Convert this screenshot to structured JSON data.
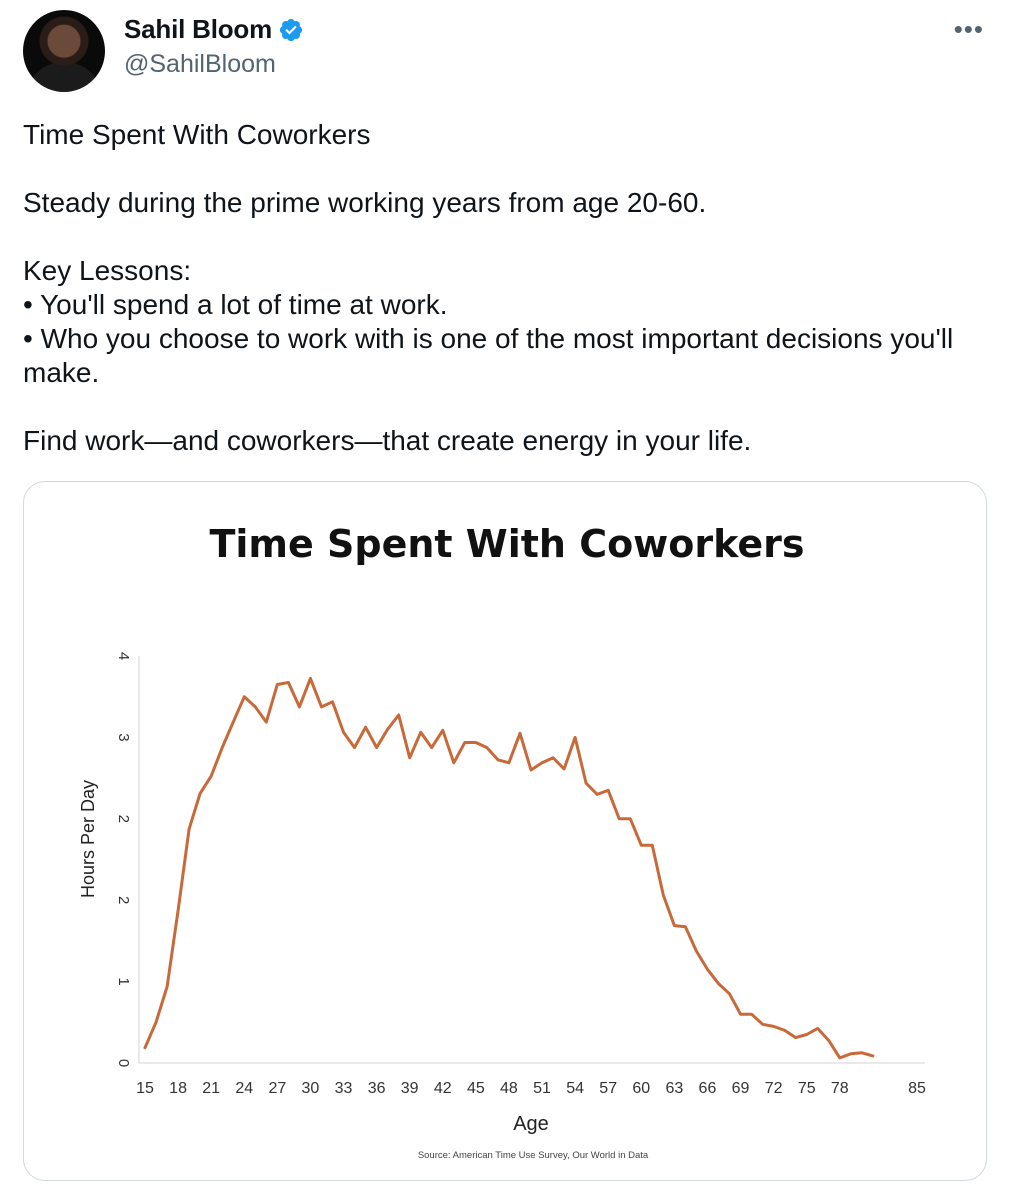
{
  "author": {
    "name": "Sahil Bloom",
    "handle": "@SahilBloom",
    "verified_icon": "verified-badge-icon",
    "more_icon": "more-options-icon",
    "more_label": "•••"
  },
  "tweet": {
    "title": "Time Spent With Coworkers",
    "line1": "Steady during the prime working years from age 20-60.",
    "lessons_header": "Key Lessons:",
    "lesson1": "• You'll spend a lot of time at work.",
    "lesson2": "• Who you choose to work with is one of the most important decisions you'll make.",
    "closing": "Find work—and coworkers—that create energy in your life."
  },
  "chart_data": {
    "type": "line",
    "title": "Time Spent With Coworkers",
    "xlabel": "Age",
    "ylabel": "Hours Per Day",
    "source": "Source: American Time Use Survey, Our World in Data",
    "ylim": [
      0,
      4
    ],
    "xlim": [
      15,
      85
    ],
    "x_ticks": [
      15,
      18,
      21,
      24,
      27,
      30,
      33,
      36,
      39,
      42,
      45,
      48,
      51,
      54,
      57,
      60,
      63,
      66,
      69,
      72,
      75,
      78,
      85
    ],
    "y_ticks": [
      {
        "value": 0,
        "label": "0"
      },
      {
        "value": 0.8,
        "label": "1"
      },
      {
        "value": 1.6,
        "label": "2"
      },
      {
        "value": 2.4,
        "label": "2"
      },
      {
        "value": 3.2,
        "label": "3"
      },
      {
        "value": 4,
        "label": "4"
      }
    ],
    "grid": false,
    "line_color": "#c8693a",
    "series": [
      {
        "x": [
          15,
          16,
          17,
          18,
          19,
          20,
          21,
          22,
          23,
          24,
          25,
          26,
          27,
          28,
          29,
          30,
          31,
          32,
          33,
          34,
          35,
          36,
          37,
          38,
          39,
          40,
          41,
          42,
          43,
          44,
          45,
          46,
          47,
          48,
          49,
          50,
          51,
          52,
          53,
          54,
          55,
          56,
          57,
          58,
          59,
          60,
          61,
          62,
          63,
          64,
          65,
          66,
          67,
          68,
          69,
          70,
          71,
          72,
          73,
          74,
          75,
          76,
          77,
          78,
          79,
          80,
          81
        ],
        "y": [
          0.15,
          0.4,
          0.75,
          1.5,
          2.3,
          2.65,
          2.82,
          3.1,
          3.35,
          3.6,
          3.5,
          3.35,
          3.72,
          3.74,
          3.5,
          3.78,
          3.5,
          3.55,
          3.25,
          3.1,
          3.3,
          3.1,
          3.28,
          3.42,
          3.0,
          3.25,
          3.1,
          3.27,
          2.95,
          3.15,
          3.15,
          3.1,
          2.98,
          2.95,
          3.24,
          2.88,
          2.95,
          3.0,
          2.89,
          3.2,
          2.75,
          2.64,
          2.68,
          2.4,
          2.4,
          2.14,
          2.14,
          1.65,
          1.35,
          1.34,
          1.1,
          0.92,
          0.78,
          0.68,
          0.48,
          0.48,
          0.38,
          0.36,
          0.32,
          0.25,
          0.28,
          0.34,
          0.22,
          0.05,
          0.09,
          0.1,
          0.07
        ]
      }
    ]
  }
}
